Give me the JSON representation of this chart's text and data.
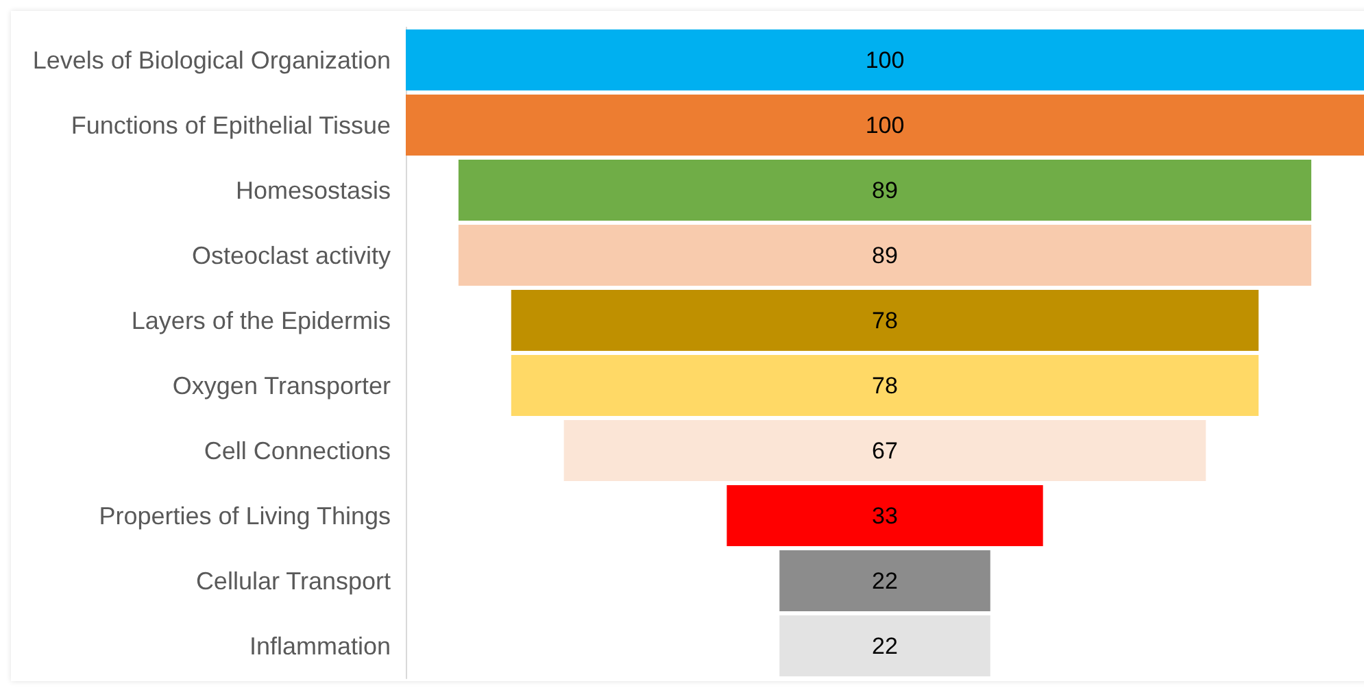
{
  "chart_data": {
    "type": "other",
    "categories": [
      "Levels of Biological Organization",
      "Functions of Epithelial Tissue",
      "Homesostasis",
      "Osteoclast activity",
      "Layers of the Epidermis",
      "Oxygen Transporter",
      "Cell Connections",
      "Properties of Living Things",
      "Cellular Transport",
      "Inflammation"
    ],
    "values": [
      100,
      100,
      89,
      89,
      78,
      78,
      67,
      33,
      22,
      22
    ],
    "colors": [
      "#00b0f0",
      "#ed7d31",
      "#70ad47",
      "#f8cbad",
      "#bf9000",
      "#ffd966",
      "#fbe5d6",
      "#ff0000",
      "#8c8c8c",
      "#e3e3e3"
    ],
    "data_labels": true
  }
}
